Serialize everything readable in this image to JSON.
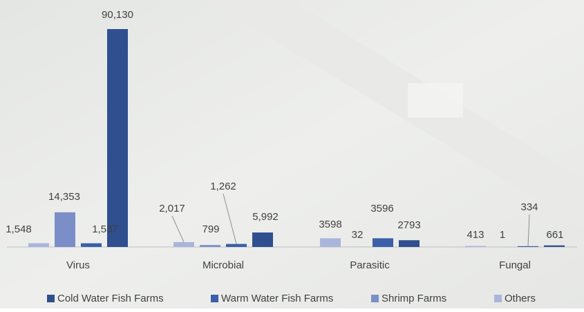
{
  "chart_data": {
    "type": "bar",
    "categories": [
      "Virus",
      "Microbial",
      "Parasitic",
      "Fungal"
    ],
    "series": [
      {
        "name": "Cold Water Fish Farms",
        "color": "#2f4f8f",
        "values": [
          90130,
          5992,
          2793,
          661
        ],
        "value_labels": [
          "90,130",
          "5,992",
          "2793",
          "661"
        ]
      },
      {
        "name": "Warm Water Fish Farms",
        "color": "#3b5fa8",
        "values": [
          1537,
          1262,
          3596,
          334
        ],
        "value_labels": [
          "1,537",
          "1,262",
          "3596",
          "334"
        ]
      },
      {
        "name": "Shrimp Farms",
        "color": "#7b8ec7",
        "values": [
          14353,
          799,
          32,
          1
        ],
        "value_labels": [
          "14,353",
          "799",
          "32",
          "1"
        ]
      },
      {
        "name": "Others",
        "color": "#a9b5da",
        "values": [
          1548,
          2017,
          3598,
          413
        ],
        "value_labels": [
          "1,548",
          "2,017",
          "3598",
          "413"
        ]
      }
    ],
    "legend": "bottom"
  }
}
